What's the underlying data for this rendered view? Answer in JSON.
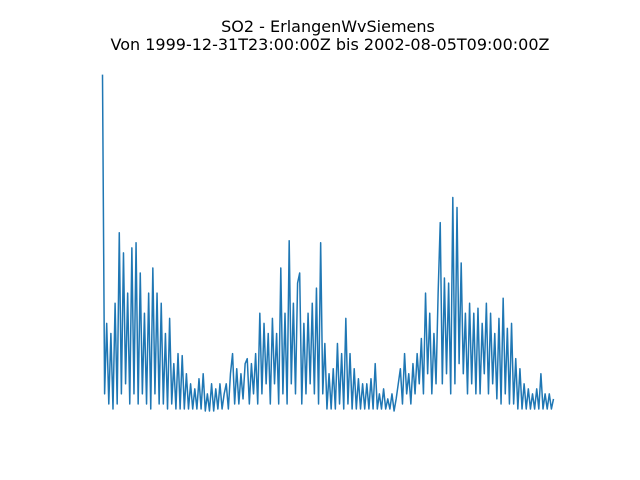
{
  "chart_data": {
    "type": "line",
    "title": "SO2 - ErlangenWvSiemens",
    "subtitle": "Von 1999-12-31T23:00:00Z bis 2002-08-05T09:00:00Z",
    "color": "#1f77b4",
    "values": [
      337,
      20,
      90,
      10,
      80,
      5,
      110,
      10,
      180,
      20,
      160,
      30,
      120,
      10,
      165,
      20,
      170,
      10,
      140,
      20,
      100,
      10,
      120,
      5,
      145,
      20,
      120,
      10,
      110,
      10,
      80,
      5,
      95,
      10,
      50,
      5,
      60,
      5,
      58,
      5,
      40,
      5,
      30,
      5,
      25,
      5,
      35,
      5,
      40,
      3,
      20,
      3,
      30,
      3,
      25,
      5,
      30,
      5,
      20,
      30,
      5,
      40,
      60,
      10,
      45,
      10,
      40,
      15,
      50,
      55,
      10,
      50,
      20,
      60,
      10,
      100,
      20,
      90,
      30,
      80,
      10,
      95,
      30,
      80,
      10,
      145,
      20,
      100,
      10,
      172,
      30,
      110,
      20,
      130,
      140,
      10,
      90,
      20,
      100,
      30,
      110,
      20,
      125,
      10,
      170,
      20,
      70,
      5,
      40,
      5,
      45,
      5,
      70,
      10,
      60,
      5,
      95,
      10,
      60,
      5,
      45,
      5,
      35,
      5,
      30,
      5,
      30,
      5,
      35,
      5,
      50,
      5,
      20,
      5,
      25,
      5,
      15,
      5,
      20,
      3,
      15,
      30,
      45,
      10,
      60,
      20,
      40,
      10,
      50,
      20,
      60,
      30,
      75,
      20,
      120,
      40,
      100,
      20,
      80,
      30,
      120,
      190,
      30,
      135,
      40,
      130,
      20,
      215,
      30,
      205,
      50,
      150,
      40,
      100,
      20,
      110,
      30,
      100,
      20,
      105,
      20,
      90,
      40,
      110,
      20,
      100,
      30,
      80,
      15,
      95,
      10,
      115,
      20,
      85,
      10,
      90,
      10,
      55,
      5,
      45,
      5,
      30,
      5,
      25,
      5,
      20,
      5,
      25,
      5,
      40,
      5,
      20,
      5,
      20,
      5,
      15
    ]
  }
}
